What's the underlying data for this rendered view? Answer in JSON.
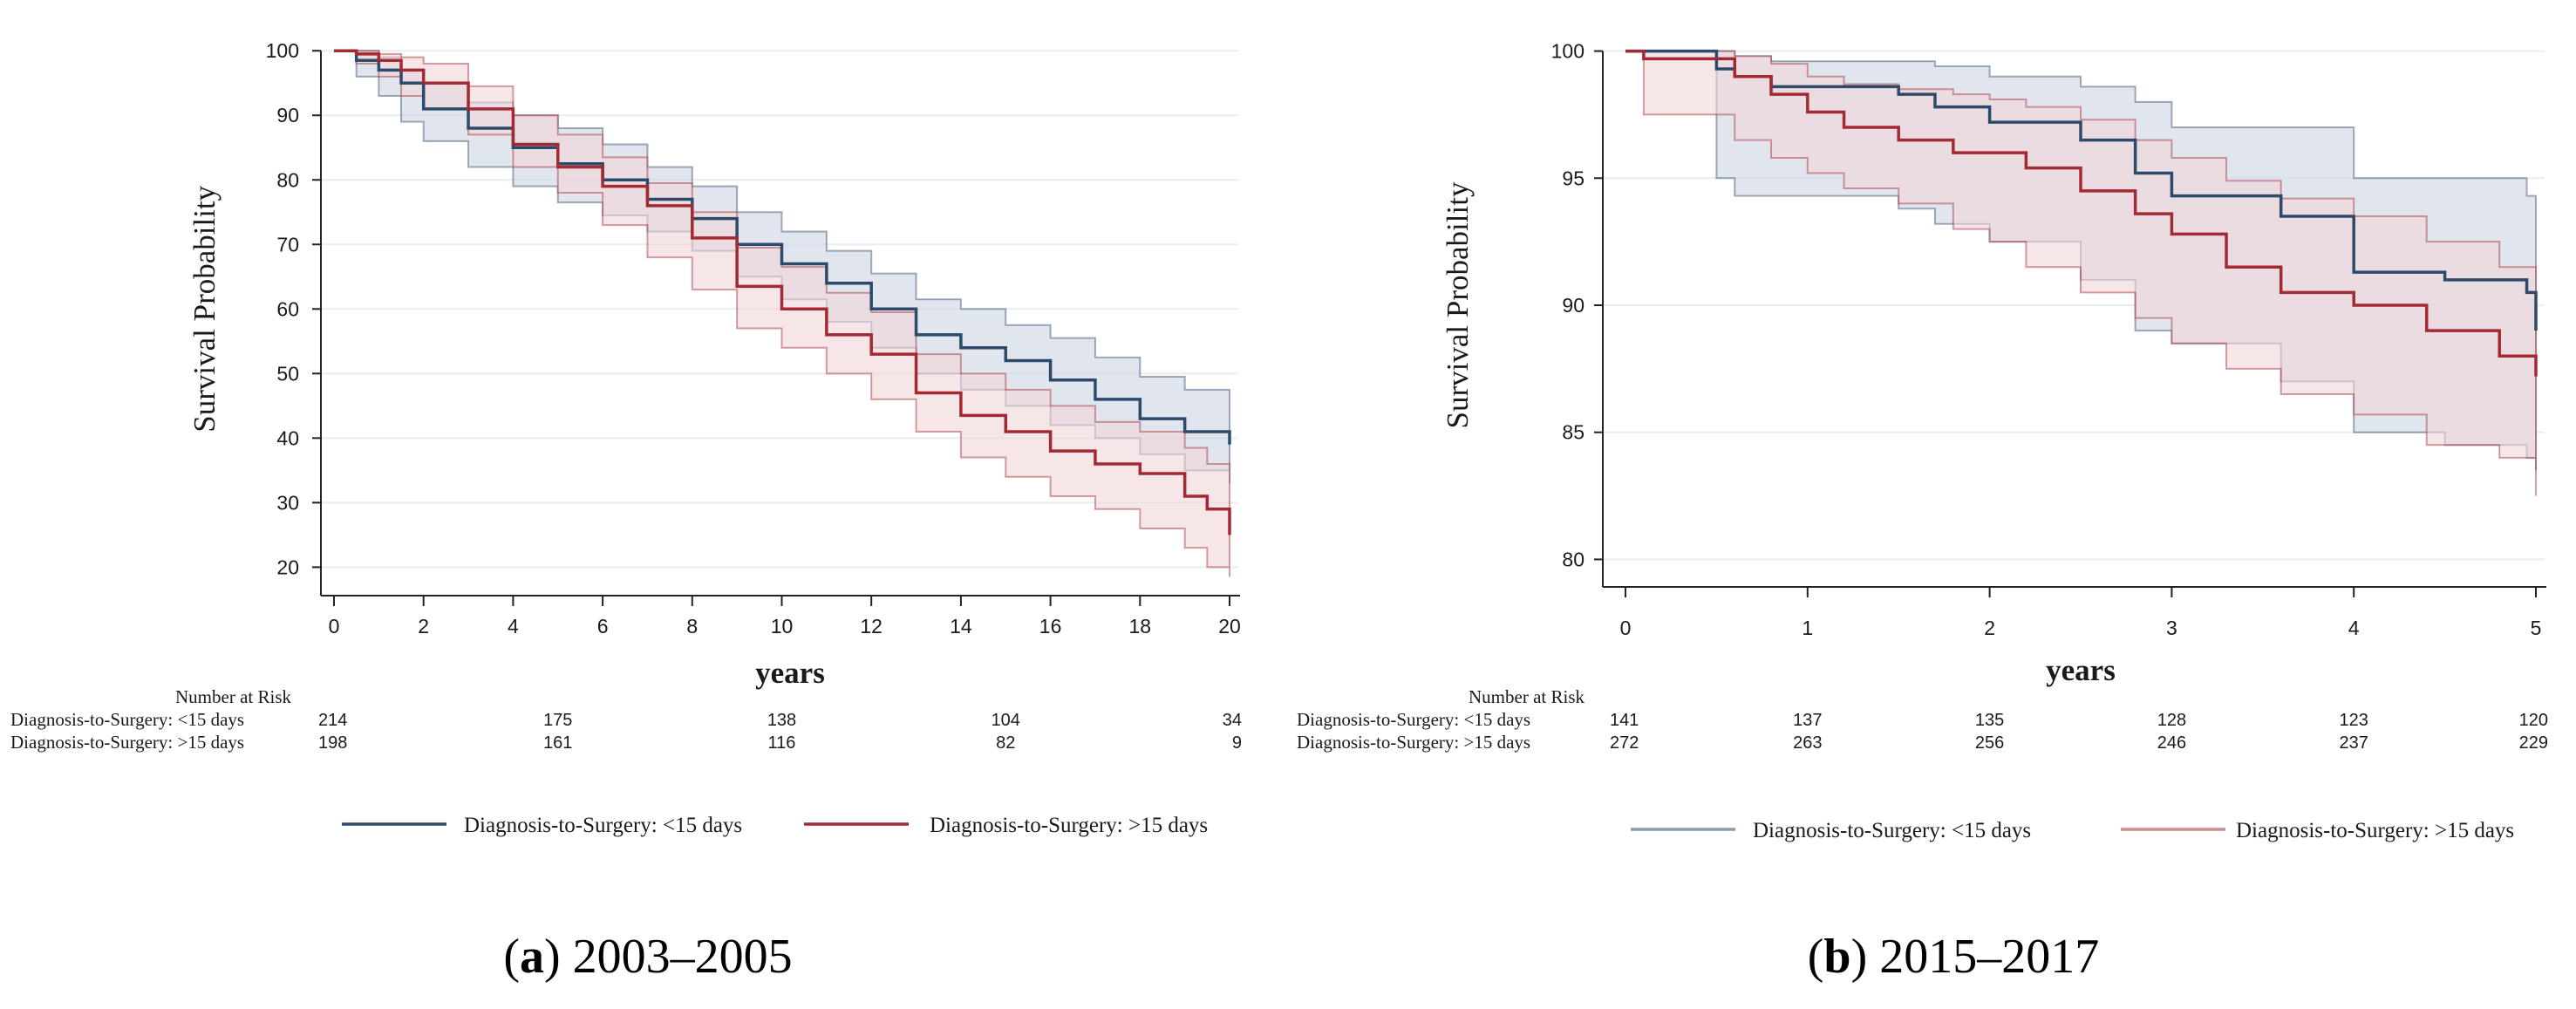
{
  "chart_data": [
    {
      "type": "line",
      "panel_letter": "a",
      "caption": "2003–2005",
      "ylabel": "Survival Probability",
      "xlabel": "years",
      "xlim": [
        0,
        20
      ],
      "ylim": [
        16,
        103
      ],
      "xticks": [
        0,
        2,
        4,
        6,
        8,
        10,
        12,
        14,
        16,
        18,
        20
      ],
      "yticks": [
        20,
        30,
        40,
        50,
        60,
        70,
        80,
        90,
        100
      ],
      "grid": "horizontal",
      "legend_position": "bottom",
      "series": [
        {
          "name": "Diagnosis-to-Surgery: <15 days",
          "color": "#2e4a6b",
          "band_color": "#cdd6e3",
          "x": [
            0,
            0.5,
            1,
            1.5,
            2,
            3,
            4,
            5,
            6,
            7,
            8,
            9,
            10,
            11,
            12,
            13,
            14,
            15,
            16,
            17,
            18,
            19,
            20
          ],
          "y": [
            100,
            98.5,
            97,
            95,
            91,
            88,
            85,
            82.5,
            80,
            77,
            74,
            70,
            67,
            64,
            60,
            56,
            54,
            52,
            49,
            46,
            43,
            41,
            39
          ],
          "lower": [
            100,
            96,
            93,
            89,
            86,
            82,
            79,
            76.5,
            74.5,
            72,
            69,
            65,
            61.5,
            58,
            54,
            50,
            47.5,
            45,
            42,
            40,
            37.5,
            35,
            33
          ],
          "upper": [
            100,
            100,
            99,
            97,
            95,
            92,
            90,
            88,
            85.5,
            82,
            79,
            75,
            72,
            69,
            65.5,
            61.5,
            60,
            57.5,
            55.5,
            52.5,
            49.5,
            47.5,
            46
          ]
        },
        {
          "name": "Diagnosis-to-Surgery: >15 days",
          "color": "#a32a33",
          "band_color": "#f0d5d9",
          "x": [
            0,
            0.5,
            1,
            1.5,
            2,
            3,
            4,
            5,
            6,
            7,
            8,
            9,
            10,
            11,
            12,
            13,
            14,
            15,
            16,
            17,
            18,
            19,
            19.5,
            20
          ],
          "y": [
            100,
            99.5,
            98.5,
            97,
            95,
            91,
            85.5,
            82,
            79,
            76,
            71,
            63.5,
            60,
            56,
            53,
            47,
            43.5,
            41,
            38,
            36,
            34.5,
            31,
            29,
            25
          ],
          "lower": [
            100,
            98,
            96,
            93,
            91,
            87,
            82,
            78,
            73,
            68,
            63,
            57,
            54,
            50,
            46,
            41,
            37,
            34,
            31,
            29,
            26,
            23,
            20,
            18.5
          ],
          "upper": [
            100,
            100,
            99.5,
            99,
            98,
            94.5,
            90,
            87,
            83.5,
            79.5,
            75,
            69.5,
            66.5,
            62.5,
            59.5,
            53,
            50,
            47.5,
            45,
            42.5,
            41,
            38.5,
            36,
            34
          ]
        }
      ],
      "risk_table": {
        "title": "Number at Risk",
        "at_years": [
          0,
          5,
          10,
          15,
          20
        ],
        "rows": [
          {
            "label": "Diagnosis-to-Surgery: <15 days",
            "counts": [
              "214",
              "175",
              "138",
              "104",
              "34"
            ],
            "colors": [
              "#1a1a1a",
              "#1a1a1a",
              "#a32a33",
              "#1a1a1a",
              "#1a1a1a"
            ]
          },
          {
            "label": "Diagnosis-to-Surgery: >15 days",
            "counts": [
              "198",
              "161",
              "116",
              "82",
              "9"
            ],
            "colors": [
              "#1a1a1a",
              "#1a1a1a",
              "#1a1a1a",
              "#1a1a1a",
              "#1a1a1a"
            ]
          }
        ]
      }
    },
    {
      "type": "line",
      "panel_letter": "b",
      "caption": "2015–2017",
      "ylabel": "Survival Probability",
      "xlabel": "years",
      "xlim": [
        0,
        5
      ],
      "ylim": [
        79.5,
        100.5
      ],
      "xticks": [
        0,
        1,
        2,
        3,
        4,
        5
      ],
      "yticks": [
        80,
        85,
        90,
        95,
        100
      ],
      "grid": "horizontal",
      "legend_position": "bottom",
      "series": [
        {
          "name": "Diagnosis-to-Surgery: <15 days",
          "color": "#2e4a6b",
          "band_color": "#cdd6e3",
          "x": [
            0,
            0.5,
            0.6,
            0.8,
            1,
            1.5,
            1.7,
            2,
            2.5,
            2.8,
            3,
            3.6,
            4,
            4.5,
            4.95,
            5
          ],
          "y": [
            100,
            99.3,
            99,
            98.6,
            98.6,
            98.3,
            97.8,
            97.2,
            96.5,
            95.2,
            94.3,
            93.5,
            91.3,
            91,
            90.5,
            89
          ],
          "lower": [
            100,
            95,
            94.3,
            94.3,
            94.3,
            93.8,
            93.2,
            92.5,
            91,
            89,
            88.5,
            87,
            85,
            84.5,
            84,
            83.5
          ],
          "upper": [
            100,
            100,
            99.8,
            99.6,
            99.6,
            99.6,
            99.4,
            99,
            98.6,
            98,
            97,
            97,
            95,
            95,
            94.3,
            93
          ]
        },
        {
          "name": "Diagnosis-to-Surgery: >15 days",
          "color": "#a32a33",
          "band_color": "#f0d5d9",
          "x": [
            0,
            0.1,
            0.5,
            0.6,
            0.8,
            1,
            1.2,
            1.5,
            1.8,
            2,
            2.2,
            2.5,
            2.8,
            3,
            3.3,
            3.6,
            4,
            4.4,
            4.8,
            5
          ],
          "y": [
            100,
            99.7,
            99.7,
            99,
            98.3,
            97.6,
            97,
            96.5,
            96,
            96,
            95.4,
            94.5,
            93.6,
            92.8,
            91.5,
            90.5,
            90,
            89,
            88,
            87.2
          ],
          "lower": [
            100,
            97.5,
            97.5,
            96.5,
            95.8,
            95.2,
            94.6,
            94,
            93,
            92.5,
            91.5,
            90.5,
            89.5,
            88.5,
            87.5,
            86.5,
            85.7,
            84.5,
            84,
            82.5
          ],
          "upper": [
            100,
            100,
            100,
            99.8,
            99.5,
            99,
            98.7,
            98.5,
            98.3,
            98.1,
            97.8,
            97.3,
            96.5,
            95.8,
            94.9,
            94.2,
            93.5,
            92.5,
            91.5,
            90.4
          ]
        }
      ],
      "risk_table": {
        "title": "Number at Risk",
        "at_years": [
          0,
          1,
          2,
          3,
          4,
          5
        ],
        "rows": [
          {
            "label": "Diagnosis-to-Surgery: <15 days",
            "counts": [
              "141",
              "137",
              "135",
              "128",
              "123",
              "120"
            ],
            "colors": [
              "#1a1a1a",
              "#1a1a1a",
              "#1a1a1a",
              "#1a1a1a",
              "#1a1a1a",
              "#1a1a1a"
            ]
          },
          {
            "label": "Diagnosis-to-Surgery: >15 days",
            "counts": [
              "272",
              "263",
              "256",
              "246",
              "237",
              "229"
            ],
            "colors": [
              "#1a1a1a",
              "#1a1a1a",
              "#1a1a1a",
              "#1a1a1a",
              "#1a1a1a",
              "#1a1a1a"
            ]
          }
        ]
      }
    }
  ]
}
